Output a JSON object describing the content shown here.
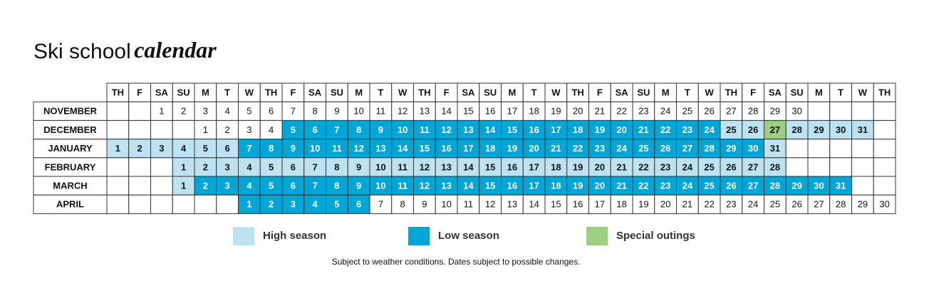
{
  "title": {
    "main": "Ski school",
    "emphasis": "calendar"
  },
  "weekdays": [
    "TH",
    "F",
    "SA",
    "SU",
    "M",
    "T",
    "W",
    "TH",
    "F",
    "SA",
    "SU",
    "M",
    "T",
    "W",
    "TH",
    "F",
    "SA",
    "SU",
    "M",
    "T",
    "W",
    "TH",
    "F",
    "SA",
    "SU",
    "M",
    "T",
    "W",
    "TH",
    "F",
    "SA",
    "SU",
    "M",
    "T",
    "W",
    "TH"
  ],
  "months": [
    {
      "name": "NOVEMBER",
      "days": [
        null,
        null,
        1,
        2,
        3,
        4,
        5,
        6,
        7,
        8,
        9,
        10,
        11,
        12,
        13,
        14,
        15,
        16,
        17,
        18,
        19,
        20,
        21,
        22,
        23,
        24,
        25,
        26,
        27,
        28,
        29,
        30,
        null,
        null,
        null,
        null
      ]
    },
    {
      "name": "DECEMBER",
      "days": [
        null,
        null,
        null,
        null,
        1,
        2,
        3,
        4,
        5,
        6,
        7,
        8,
        9,
        10,
        11,
        12,
        13,
        14,
        15,
        16,
        17,
        18,
        19,
        20,
        21,
        22,
        23,
        24,
        25,
        26,
        27,
        28,
        29,
        30,
        31,
        null
      ],
      "season": [
        null,
        null,
        null,
        null,
        null,
        null,
        null,
        null,
        "L",
        "L",
        "L",
        "L",
        "L",
        "L",
        "L",
        "L",
        "L",
        "L",
        "L",
        "L",
        "L",
        "L",
        "L",
        "L",
        "L",
        "L",
        "L",
        "L",
        "H",
        "H",
        "S",
        "H",
        "H",
        "H",
        "H",
        null
      ]
    },
    {
      "name": "JANUARY",
      "days": [
        1,
        2,
        3,
        4,
        5,
        6,
        7,
        8,
        9,
        10,
        11,
        12,
        13,
        14,
        15,
        16,
        17,
        18,
        19,
        20,
        21,
        22,
        23,
        24,
        25,
        26,
        27,
        28,
        29,
        30,
        31,
        null,
        null,
        null,
        null,
        null
      ],
      "season": [
        "H",
        "H",
        "H",
        "H",
        "H",
        "H",
        "L",
        "L",
        "L",
        "L",
        "L",
        "L",
        "L",
        "L",
        "L",
        "L",
        "L",
        "L",
        "L",
        "L",
        "L",
        "L",
        "L",
        "L",
        "L",
        "L",
        "L",
        "L",
        "L",
        "L",
        "H",
        null,
        null,
        null,
        null,
        null
      ]
    },
    {
      "name": "FEBRUARY",
      "days": [
        null,
        null,
        null,
        1,
        2,
        3,
        4,
        5,
        6,
        7,
        8,
        9,
        10,
        11,
        12,
        13,
        14,
        15,
        16,
        17,
        18,
        19,
        20,
        21,
        22,
        23,
        24,
        25,
        26,
        27,
        28,
        null,
        null,
        null,
        null,
        null
      ],
      "season": [
        null,
        null,
        null,
        "H",
        "H",
        "H",
        "H",
        "H",
        "H",
        "H",
        "H",
        "H",
        "H",
        "H",
        "H",
        "H",
        "H",
        "H",
        "H",
        "H",
        "H",
        "H",
        "H",
        "H",
        "H",
        "H",
        "H",
        "H",
        "H",
        "H",
        "H",
        null,
        null,
        null,
        null,
        null
      ]
    },
    {
      "name": "MARCH",
      "days": [
        null,
        null,
        null,
        1,
        2,
        3,
        4,
        5,
        6,
        7,
        8,
        9,
        10,
        11,
        12,
        13,
        14,
        15,
        16,
        17,
        18,
        19,
        20,
        21,
        22,
        23,
        24,
        25,
        26,
        27,
        28,
        29,
        30,
        31,
        null,
        null
      ],
      "season": [
        null,
        null,
        null,
        "H",
        "L",
        "L",
        "L",
        "L",
        "L",
        "L",
        "L",
        "L",
        "L",
        "L",
        "L",
        "L",
        "L",
        "L",
        "L",
        "L",
        "L",
        "L",
        "L",
        "L",
        "L",
        "L",
        "L",
        "L",
        "L",
        "L",
        "L",
        "L",
        "L",
        "L",
        null,
        null
      ]
    },
    {
      "name": "APRIL",
      "days": [
        null,
        null,
        null,
        null,
        null,
        null,
        1,
        2,
        3,
        4,
        5,
        6,
        7,
        8,
        9,
        10,
        11,
        12,
        13,
        14,
        15,
        16,
        17,
        18,
        19,
        20,
        21,
        22,
        23,
        24,
        25,
        26,
        27,
        28,
        29,
        30
      ],
      "season": [
        null,
        null,
        null,
        null,
        null,
        null,
        "L",
        "L",
        "L",
        "L",
        "L",
        "L",
        null,
        null,
        null,
        null,
        null,
        null,
        null,
        null,
        null,
        null,
        null,
        null,
        null,
        null,
        null,
        null,
        null,
        null,
        null,
        null,
        null,
        null,
        null,
        null
      ]
    }
  ],
  "legend": [
    {
      "key": "H",
      "label": "High season",
      "color": "#bde3f2",
      "text": "#111"
    },
    {
      "key": "L",
      "label": "Low season",
      "color": "#00a6d6",
      "text": "#fff"
    },
    {
      "key": "S",
      "label": "Special outings",
      "color": "#9dcf82",
      "text": "#111"
    }
  ],
  "footnote": "Subject to weather conditions. Dates subject to possible changes."
}
